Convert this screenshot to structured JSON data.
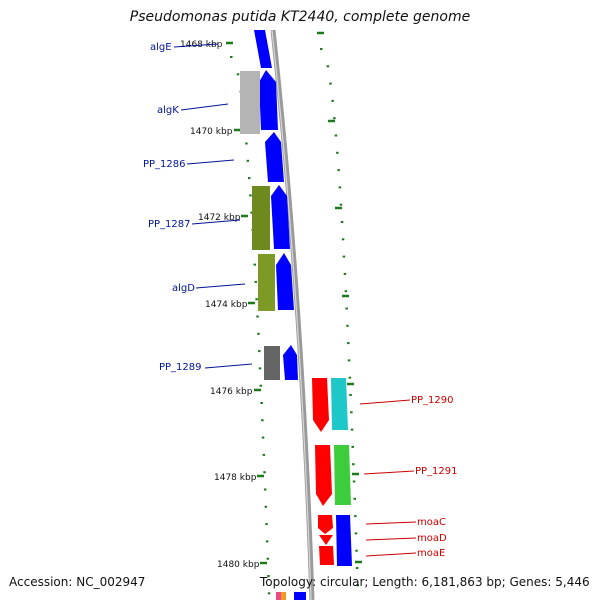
{
  "title": "Pseudomonas putida KT2440, complete genome",
  "accession": "Accession: NC_002947",
  "summary": "Topology: circular; Length: 6,181,863 bp; Genes: 5,446",
  "ticks": [
    "1468 kbp",
    "1470 kbp",
    "1472 kbp",
    "1474 kbp",
    "1476 kbp",
    "1478 kbp",
    "1480 kbp"
  ],
  "genes_left": [
    "algE",
    "algK",
    "PP_1286",
    "PP_1287",
    "algD",
    "PP_1289"
  ],
  "genes_right": [
    "PP_1290",
    "PP_1291",
    "moaC",
    "moaD",
    "moaE"
  ],
  "colors": {
    "left_label": "#00139a",
    "right_label": "#cc0000",
    "gene_blue": "#0000ff",
    "gene_red": "#ff0000",
    "gene_gray_light": "#b4b4b4",
    "gene_gray_dark": "#646464",
    "gene_olive": "#6e8a1e",
    "gene_cyan": "#1ec8c8",
    "gene_green": "#3ccc3c",
    "backbone": "#8a8a8a",
    "dots": "#1c7a1c"
  }
}
